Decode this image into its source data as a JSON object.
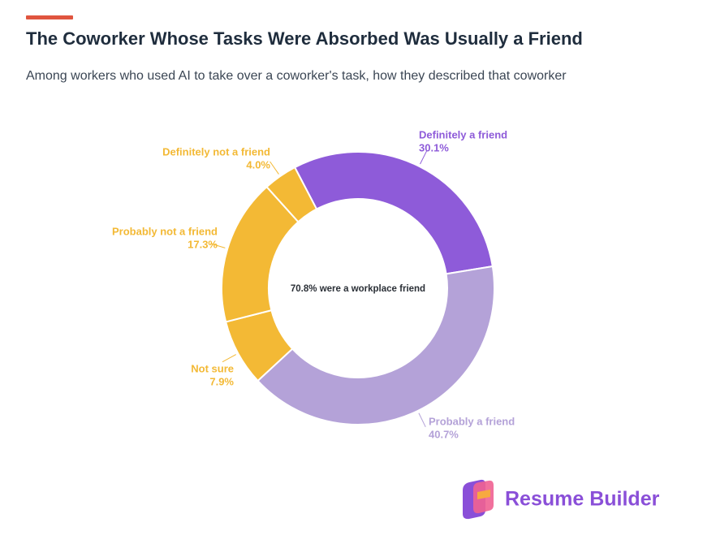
{
  "chart_data": {
    "type": "donut",
    "title": "The Coworker Whose Tasks Were Absorbed Was Usually a Friend",
    "subtitle": "Among workers who used AI to take over a coworker's task, how they described that coworker",
    "center_label": "70.8% were a workplace friend",
    "categories": [
      "Definitely a friend",
      "Probably a friend",
      "Not sure",
      "Probably not a friend",
      "Definitely not a friend"
    ],
    "values": [
      30.1,
      40.7,
      7.9,
      17.3,
      4.0
    ],
    "value_labels": [
      "30.1%",
      "40.7%",
      "7.9%",
      "17.3%",
      "4.0%"
    ],
    "colors": [
      "#8e5bd9",
      "#b4a2d8",
      "#f3b935",
      "#f3b935",
      "#f3b935"
    ]
  },
  "brand": "Resume Builder"
}
